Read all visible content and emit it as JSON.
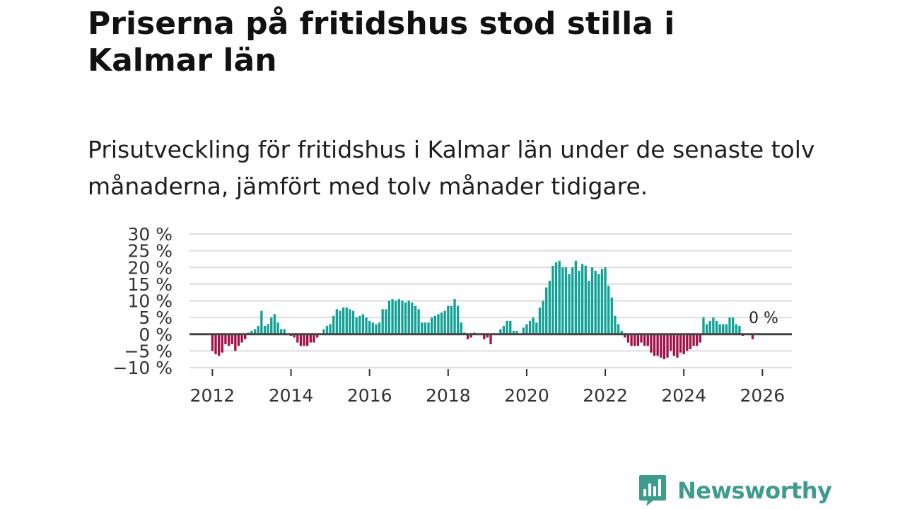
{
  "title": "Priserna på fritidshus stod stilla i Kalmar län",
  "subtitle": "Prisutveckling för fritidshus i Kalmar län under de senaste tolv månaderna, jämfört med tolv månader tidigare.",
  "brand": {
    "name": "Newsworthy",
    "color": "#3f9b8f",
    "icon": "bar-chart-logo-icon"
  },
  "colors": {
    "positive": "#12a196",
    "negative": "#a0124a",
    "zero_line": "#444444",
    "grid": "#dddddd"
  },
  "chart_data": {
    "type": "bar",
    "title": "",
    "xlabel": "",
    "ylabel": "",
    "ylim": [
      -10,
      30
    ],
    "xlim": [
      "2011-06",
      "2026-10"
    ],
    "y_ticks": [
      -10,
      -5,
      0,
      5,
      10,
      15,
      20,
      25,
      30
    ],
    "y_tick_labels": [
      "−10 %",
      "−5 %",
      "0 %",
      "5 %",
      "10 %",
      "15 %",
      "20 %",
      "25 %",
      "30 %"
    ],
    "x_ticks": [
      "2012",
      "2014",
      "2016",
      "2018",
      "2020",
      "2022",
      "2024",
      "2026"
    ],
    "grid": true,
    "end_label": "0 %",
    "start": "2012-01",
    "frequency": "monthly",
    "values": [
      -5,
      -6,
      -6.5,
      -5.5,
      -3,
      -3.5,
      -3,
      -5,
      -3.5,
      -2.5,
      -1.5,
      0.5,
      1,
      1.5,
      2.5,
      7,
      2.5,
      3,
      5,
      6,
      3.5,
      1.5,
      1.5,
      0,
      -0.5,
      -1,
      -2.5,
      -3.5,
      -3.5,
      -3.5,
      -2.5,
      -2.5,
      -1,
      0,
      1.5,
      2.5,
      3,
      5.5,
      7.5,
      7,
      8,
      8,
      7.5,
      7,
      5,
      5.5,
      6,
      5,
      4,
      3.5,
      3,
      3.5,
      7.5,
      7.5,
      10,
      10.5,
      10,
      10.5,
      10,
      9.5,
      10,
      9.5,
      8.5,
      7.5,
      3.5,
      3.5,
      3.5,
      5,
      5.5,
      6,
      6.5,
      7,
      8.5,
      8.5,
      10.5,
      8.5,
      3.5,
      0.5,
      -1.5,
      -1,
      0.5,
      0,
      0,
      -1.5,
      -1,
      -3,
      0,
      0,
      1.5,
      2.5,
      4,
      4,
      1,
      1,
      0,
      2,
      3,
      4,
      5,
      3.5,
      8,
      10,
      14,
      16,
      20.5,
      21.5,
      22,
      20,
      20,
      18,
      20,
      22,
      19,
      21,
      20.5,
      16,
      20,
      19,
      18,
      19.5,
      20,
      14.5,
      11,
      5.5,
      3,
      1,
      -1,
      -2.5,
      -3.5,
      -3.5,
      -3.5,
      -2.5,
      -3.5,
      -3.5,
      -5.5,
      -6.5,
      -6.5,
      -7,
      -7.5,
      -7,
      -5,
      -6.5,
      -7,
      -5.5,
      -6,
      -5,
      -4.5,
      -3.5,
      -3.5,
      -2.5,
      5,
      3,
      4,
      5,
      4,
      3,
      3,
      3,
      5,
      5,
      3,
      2.5,
      -0.5,
      0,
      0,
      -1.5
    ]
  }
}
